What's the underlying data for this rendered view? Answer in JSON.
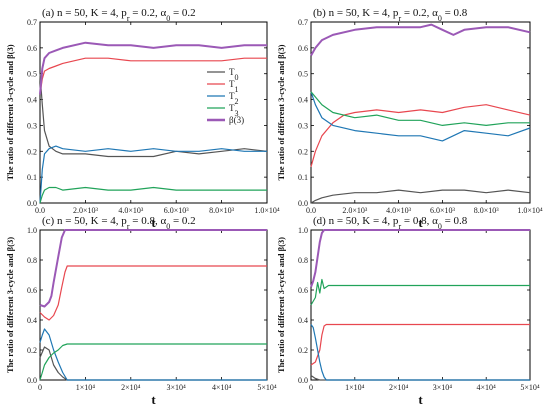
{
  "colors": {
    "T0": "#555555",
    "T1": "#e8474f",
    "T2": "#1f77b4",
    "T3": "#21a35a",
    "beta3": "#9b59b6"
  },
  "chart_data": [
    {
      "type": "line",
      "panel": "a",
      "title_parts": [
        "(a)  n = 50, K = 4, p",
        "r",
        " = 0.2, α",
        "0",
        " = 0.2"
      ],
      "xlabel": "t",
      "ylabel": "The ratio of different 3-cycle and β(3)",
      "xlim": [
        0,
        10000
      ],
      "ylim": [
        0,
        0.7
      ],
      "xticks": [
        0,
        2000,
        4000,
        6000,
        8000,
        10000
      ],
      "xtick_labels": [
        "0.0",
        "2.0×10³",
        "4.0×10³",
        "6.0×10³",
        "8.0×10³",
        "1.0×10⁴"
      ],
      "yticks": [
        0,
        0.1,
        0.2,
        0.3,
        0.4,
        0.5,
        0.6,
        0.7
      ],
      "ytick_labels": [
        "0.0",
        "0.1",
        "0.2",
        "0.3",
        "0.4",
        "0.5",
        "0.6",
        "0.7"
      ],
      "legend": {
        "placement": "right-middle",
        "entries": [
          {
            "key": "T0",
            "main": "T",
            "sub": "0"
          },
          {
            "key": "T1",
            "main": "T",
            "sub": "1"
          },
          {
            "key": "T2",
            "main": "T",
            "sub": "2"
          },
          {
            "key": "T3",
            "main": "T",
            "sub": "3"
          },
          {
            "key": "beta3",
            "main": "β(3)",
            "sub": ""
          }
        ]
      },
      "series": [
        {
          "key": "T0",
          "x": [
            0,
            100,
            200,
            400,
            700,
            1000,
            2000,
            3000,
            4000,
            5000,
            6000,
            7000,
            8000,
            9000,
            10000
          ],
          "y": [
            0.5,
            0.38,
            0.28,
            0.22,
            0.2,
            0.19,
            0.19,
            0.18,
            0.18,
            0.18,
            0.2,
            0.19,
            0.2,
            0.21,
            0.2
          ]
        },
        {
          "key": "T1",
          "x": [
            0,
            100,
            200,
            400,
            700,
            1000,
            2000,
            3000,
            4000,
            5000,
            6000,
            7000,
            8000,
            9000,
            10000
          ],
          "y": [
            0.42,
            0.48,
            0.51,
            0.52,
            0.53,
            0.54,
            0.56,
            0.56,
            0.55,
            0.55,
            0.55,
            0.55,
            0.55,
            0.56,
            0.56
          ]
        },
        {
          "key": "T2",
          "x": [
            0,
            100,
            200,
            400,
            700,
            1000,
            2000,
            3000,
            4000,
            5000,
            6000,
            7000,
            8000,
            9000,
            10000
          ],
          "y": [
            0.0,
            0.13,
            0.19,
            0.21,
            0.22,
            0.21,
            0.2,
            0.21,
            0.2,
            0.21,
            0.2,
            0.2,
            0.21,
            0.2,
            0.2
          ]
        },
        {
          "key": "T3",
          "x": [
            0,
            100,
            200,
            400,
            700,
            1000,
            2000,
            3000,
            4000,
            5000,
            6000,
            7000,
            8000,
            9000,
            10000
          ],
          "y": [
            0.0,
            0.03,
            0.05,
            0.06,
            0.06,
            0.05,
            0.06,
            0.05,
            0.05,
            0.06,
            0.05,
            0.05,
            0.05,
            0.05,
            0.05
          ]
        },
        {
          "key": "beta3",
          "x": [
            0,
            100,
            200,
            400,
            700,
            1000,
            2000,
            3000,
            4000,
            5000,
            6000,
            7000,
            8000,
            9000,
            10000
          ],
          "y": [
            0.42,
            0.52,
            0.56,
            0.58,
            0.59,
            0.6,
            0.62,
            0.61,
            0.61,
            0.6,
            0.61,
            0.61,
            0.6,
            0.61,
            0.61
          ]
        }
      ]
    },
    {
      "type": "line",
      "panel": "b",
      "title_parts": [
        "(b)  n = 50, K = 4, p",
        "r",
        " = 0.2, α",
        "0",
        " = 0.8"
      ],
      "xlabel": "t",
      "ylabel": "The ratio of different 3-cycle and β(3)",
      "xlim": [
        0,
        10000
      ],
      "ylim": [
        0,
        0.7
      ],
      "xticks": [
        0,
        2000,
        4000,
        6000,
        8000,
        10000
      ],
      "xtick_labels": [
        "0.0",
        "2.0×10³",
        "4.0×10³",
        "6.0×10³",
        "8.0×10³",
        "1.0×10⁴"
      ],
      "yticks": [
        0,
        0.1,
        0.2,
        0.3,
        0.4,
        0.5,
        0.6,
        0.7
      ],
      "ytick_labels": [
        "0.0",
        "0.1",
        "0.2",
        "0.3",
        "0.4",
        "0.5",
        "0.6",
        "0.7"
      ],
      "series": [
        {
          "key": "T0",
          "x": [
            0,
            200,
            500,
            1000,
            2000,
            3000,
            4000,
            5000,
            6000,
            7000,
            8000,
            9000,
            10000
          ],
          "y": [
            0.0,
            0.01,
            0.02,
            0.03,
            0.04,
            0.04,
            0.05,
            0.04,
            0.05,
            0.05,
            0.04,
            0.05,
            0.04
          ]
        },
        {
          "key": "T1",
          "x": [
            0,
            200,
            500,
            1000,
            1500,
            2000,
            3000,
            4000,
            5000,
            6000,
            7000,
            8000,
            9000,
            10000
          ],
          "y": [
            0.14,
            0.2,
            0.26,
            0.31,
            0.34,
            0.35,
            0.36,
            0.35,
            0.36,
            0.35,
            0.37,
            0.38,
            0.36,
            0.34
          ]
        },
        {
          "key": "T2",
          "x": [
            0,
            200,
            500,
            1000,
            2000,
            3000,
            4000,
            5000,
            6000,
            7000,
            8000,
            9000,
            10000
          ],
          "y": [
            0.43,
            0.38,
            0.33,
            0.3,
            0.28,
            0.27,
            0.26,
            0.26,
            0.24,
            0.28,
            0.27,
            0.26,
            0.29
          ]
        },
        {
          "key": "T3",
          "x": [
            0,
            200,
            500,
            1000,
            2000,
            3000,
            4000,
            5000,
            6000,
            7000,
            8000,
            9000,
            10000
          ],
          "y": [
            0.43,
            0.41,
            0.38,
            0.35,
            0.33,
            0.34,
            0.32,
            0.32,
            0.3,
            0.31,
            0.3,
            0.31,
            0.31
          ]
        },
        {
          "key": "beta3",
          "x": [
            0,
            200,
            500,
            1000,
            2000,
            3000,
            4000,
            5000,
            5500,
            6000,
            6500,
            7000,
            8000,
            9000,
            10000
          ],
          "y": [
            0.57,
            0.6,
            0.63,
            0.65,
            0.67,
            0.68,
            0.68,
            0.68,
            0.69,
            0.67,
            0.65,
            0.67,
            0.68,
            0.68,
            0.66
          ]
        }
      ]
    },
    {
      "type": "line",
      "panel": "c",
      "title_parts": [
        "(c)  n = 50, K = 4, p",
        "r",
        " = 0.8, α",
        "0",
        " = 0.2"
      ],
      "xlabel": "t",
      "ylabel": "The ratio of different 3-cycle and β(3)",
      "xlim": [
        0,
        50000
      ],
      "ylim": [
        0,
        1.0
      ],
      "xticks": [
        0,
        10000,
        20000,
        30000,
        40000,
        50000
      ],
      "xtick_labels": [
        "0",
        "1×10⁴",
        "2×10⁴",
        "3×10⁴",
        "4×10⁴",
        "5×10⁴"
      ],
      "yticks": [
        0,
        0.2,
        0.4,
        0.6,
        0.8,
        1.0
      ],
      "ytick_labels": [
        "0.0",
        "0.2",
        "0.4",
        "0.6",
        "0.8",
        "1.0"
      ],
      "series": [
        {
          "key": "T0",
          "x": [
            0,
            1000,
            2000,
            3000,
            4000,
            5000,
            6000,
            50000
          ],
          "y": [
            0.15,
            0.22,
            0.2,
            0.1,
            0.05,
            0.02,
            0.0,
            0.0
          ]
        },
        {
          "key": "T1",
          "x": [
            0,
            1000,
            2000,
            3000,
            4000,
            4800,
            5500,
            6000,
            50000
          ],
          "y": [
            0.45,
            0.42,
            0.4,
            0.43,
            0.5,
            0.62,
            0.72,
            0.76,
            0.76
          ]
        },
        {
          "key": "T2",
          "x": [
            0,
            500,
            1000,
            2000,
            3000,
            4000,
            5000,
            6000,
            50000
          ],
          "y": [
            0.25,
            0.3,
            0.34,
            0.3,
            0.2,
            0.12,
            0.05,
            0.0,
            0.0
          ]
        },
        {
          "key": "T3",
          "x": [
            0,
            500,
            1000,
            2000,
            3000,
            4000,
            5000,
            6000,
            50000
          ],
          "y": [
            0.0,
            0.05,
            0.1,
            0.15,
            0.18,
            0.2,
            0.23,
            0.24,
            0.24
          ]
        },
        {
          "key": "beta3",
          "x": [
            0,
            1000,
            2000,
            2500,
            3000,
            4000,
            4800,
            5500,
            6000,
            50000
          ],
          "y": [
            0.5,
            0.49,
            0.52,
            0.56,
            0.65,
            0.82,
            0.95,
            1.0,
            1.0,
            1.0
          ]
        }
      ]
    },
    {
      "type": "line",
      "panel": "d",
      "title_parts": [
        "(d)  n = 50, K = 4, p",
        "r",
        " = 0.8, α",
        "0",
        " = 0.8"
      ],
      "xlabel": "t",
      "ylabel": "The ratio of different 3-cycle and β(3)",
      "xlim": [
        0,
        50000
      ],
      "ylim": [
        0,
        1.0
      ],
      "xticks": [
        0,
        10000,
        20000,
        30000,
        40000,
        50000
      ],
      "xtick_labels": [
        "0",
        "1×10⁴",
        "2×10⁴",
        "3×10⁴",
        "4×10⁴",
        "5×10⁴"
      ],
      "yticks": [
        0,
        0.2,
        0.4,
        0.6,
        0.8,
        1.0
      ],
      "ytick_labels": [
        "0.0",
        "0.2",
        "0.4",
        "0.6",
        "0.8",
        "1.0"
      ],
      "series": [
        {
          "key": "T0",
          "x": [
            0,
            500,
            1000,
            2000,
            3000,
            50000
          ],
          "y": [
            0.03,
            0.02,
            0.01,
            0.0,
            0.0,
            0.0
          ]
        },
        {
          "key": "T1",
          "x": [
            0,
            1000,
            2000,
            2500,
            3000,
            3500,
            50000
          ],
          "y": [
            0.1,
            0.12,
            0.2,
            0.3,
            0.36,
            0.37,
            0.37
          ]
        },
        {
          "key": "T2",
          "x": [
            0,
            500,
            1000,
            1500,
            2000,
            2500,
            3000,
            3500,
            50000
          ],
          "y": [
            0.37,
            0.35,
            0.28,
            0.2,
            0.12,
            0.06,
            0.02,
            0.0,
            0.0
          ]
        },
        {
          "key": "T3",
          "x": [
            0,
            1000,
            1500,
            2000,
            2500,
            3000,
            4000,
            50000
          ],
          "y": [
            0.5,
            0.55,
            0.65,
            0.58,
            0.67,
            0.61,
            0.63,
            0.63
          ]
        },
        {
          "key": "beta3",
          "x": [
            0,
            500,
            1000,
            1500,
            2000,
            2500,
            3000,
            50000
          ],
          "y": [
            0.62,
            0.66,
            0.72,
            0.82,
            0.92,
            0.98,
            1.0,
            1.0
          ]
        }
      ]
    }
  ]
}
